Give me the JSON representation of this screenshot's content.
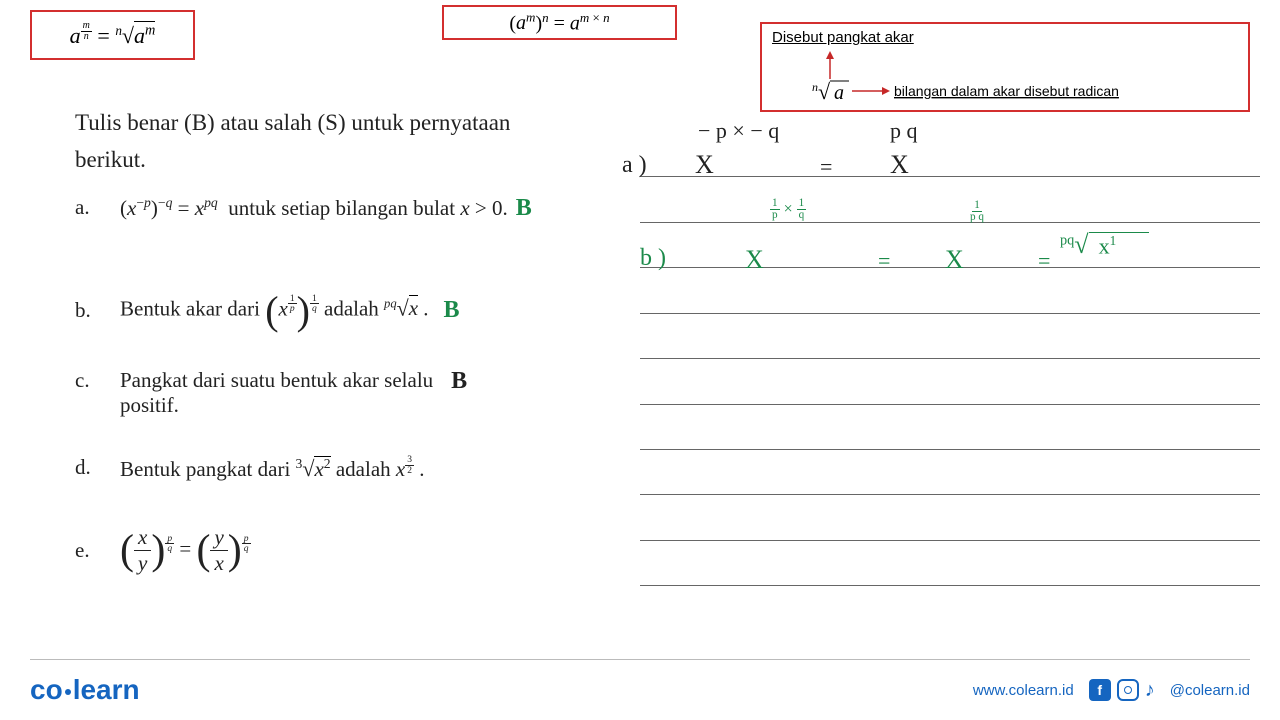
{
  "formulas": {
    "box1_html": "<span class='italic'>a</span><sup><span class='frac'><span class='num italic'>m</span><span class='den italic'>n</span></span></sup> = <sup class='italic' style='font-size:0.6em'>n</sup>√<span style='border-top:1px solid #000;padding-top:1px'><span class='italic'>a</span><sup class='italic'>m</sup></span>",
    "box2_html": "(<span class='italic'>a<sup>m</sup></span>)<sup class='italic'>n</sup> = <span class='italic'>a</span><sup><span class='italic'>m</span> × <span class='italic'>n</span></sup>",
    "box3_title": "Disebut pangkat akar",
    "box3_label": "bilangan dalam akar disebut radican"
  },
  "question": {
    "intro": "Tulis benar (B) atau salah (S) untuk pernyataan berikut.",
    "items": {
      "a": {
        "label": "a.",
        "html": "(<span class='italic'>x</span><sup>−<span class='italic'>p</span></sup>)<sup>−<span class='italic'>q</span></sup> = <span class='italic'>x</span><sup class='italic'>pq</sup>&nbsp; untuk setiap bilangan bulat <span class='italic'>x</span> > 0.",
        "answer": "B"
      },
      "b": {
        "label": "b.",
        "text_before": "Bentuk akar dari ",
        "text_after": " adalah ",
        "answer": "B"
      },
      "c": {
        "label": "c.",
        "text": "Pangkat dari suatu bentuk akar selalu positif.",
        "answer": "B"
      },
      "d": {
        "label": "d.",
        "text_before": "Bentuk pangkat dari ",
        "text_after": " adalah "
      },
      "e": {
        "label": "e."
      }
    }
  },
  "handwriting": {
    "top_right_1": "− p × − q",
    "top_right_2": "p q",
    "line_a_left": "a )",
    "line_a_x1": "X",
    "line_a_eq": "=",
    "line_a_x2": "X",
    "line_b_left": "b )",
    "line_b_x1": "X",
    "line_b_eq": "=",
    "line_b_x2": "X",
    "line_b_eq2": "="
  },
  "footer": {
    "logo_co": "co",
    "logo_learn": "learn",
    "url": "www.colearn.id",
    "handle": "@colearn.id"
  },
  "styling": {
    "red": "#d32f2f",
    "green": "#1b8a4a",
    "blue": "#1565c0",
    "black": "#222",
    "rule_line_positions": [
      176,
      222,
      267,
      313,
      358,
      404,
      449,
      494,
      540,
      585
    ]
  }
}
